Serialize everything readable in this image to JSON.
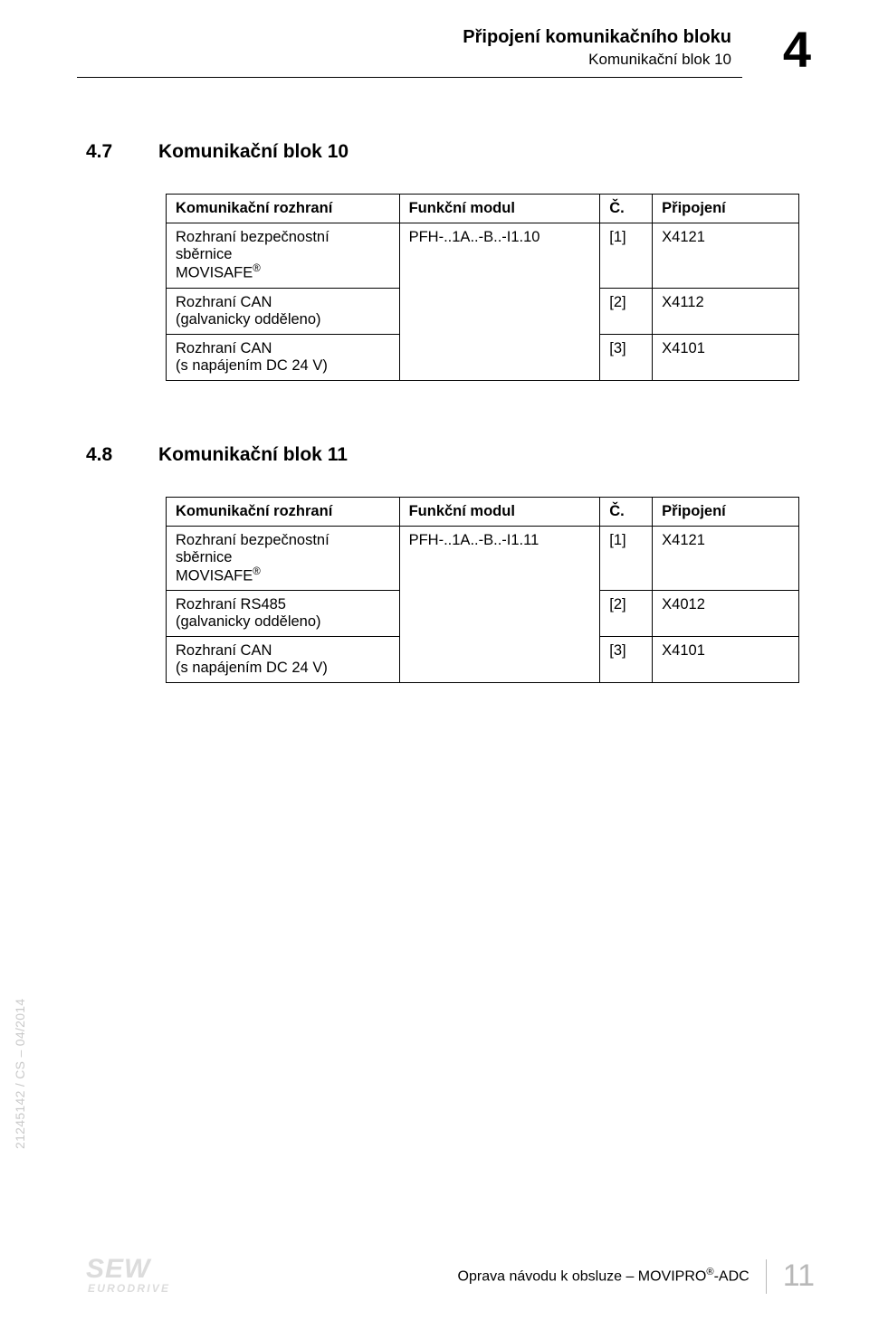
{
  "header": {
    "title": "Připojení komunikačního bloku",
    "subtitle": "Komunikační blok 10",
    "chapter_number": "4"
  },
  "section47": {
    "number": "4.7",
    "title": "Komunikační blok 10",
    "headers": {
      "c1": "Komunikační rozhraní",
      "c2": "Funkční modul",
      "c3": "Č.",
      "c4": "Připojení"
    },
    "module": "PFH-..1A..-B..-I1.10",
    "rows": [
      {
        "c1a": "Rozhraní bezpečnostní sběrnice",
        "c1b": "MOVISAFE",
        "c3": "[1]",
        "c4": "X4121"
      },
      {
        "c1a": "Rozhraní CAN",
        "c1b": "(galvanicky odděleno)",
        "c3": "[2]",
        "c4": "X4112"
      },
      {
        "c1a": "Rozhraní CAN",
        "c1b": "(s napájením DC 24 V)",
        "c3": "[3]",
        "c4": "X4101"
      }
    ]
  },
  "section48": {
    "number": "4.8",
    "title": "Komunikační blok 11",
    "headers": {
      "c1": "Komunikační rozhraní",
      "c2": "Funkční modul",
      "c3": "Č.",
      "c4": "Připojení"
    },
    "module": "PFH-..1A..-B..-I1.11",
    "rows": [
      {
        "c1a": "Rozhraní bezpečnostní sběrnice",
        "c1b": "MOVISAFE",
        "c3": "[1]",
        "c4": "X4121"
      },
      {
        "c1a": "Rozhraní RS485",
        "c1b": "(galvanicky odděleno)",
        "c3": "[2]",
        "c4": "X4012"
      },
      {
        "c1a": "Rozhraní CAN",
        "c1b": "(s napájením DC 24 V)",
        "c3": "[3]",
        "c4": "X4101"
      }
    ]
  },
  "side_text": "21245142 / CS – 04/2014",
  "footer": {
    "logo_top": "SEW",
    "logo_bottom": "EURODRIVE",
    "text_prefix": "Oprava návodu k obsluze – MOVIPRO",
    "text_suffix": "-ADC",
    "page_number": "11"
  }
}
